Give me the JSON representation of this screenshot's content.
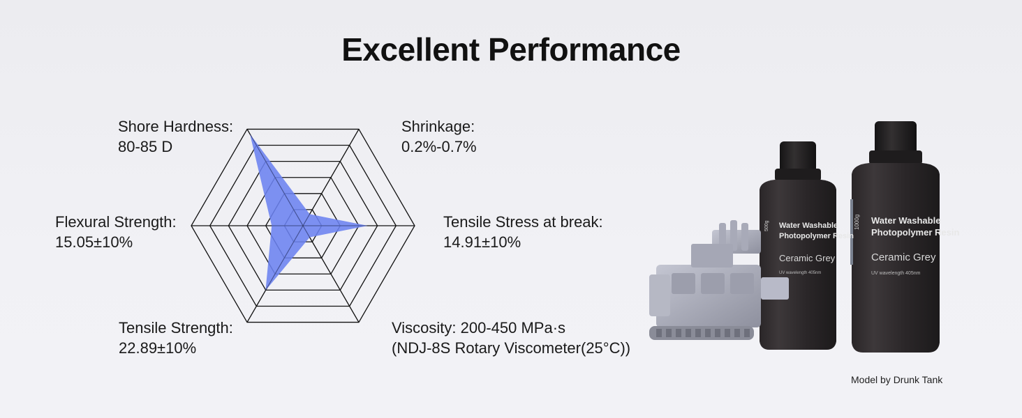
{
  "title": "Excellent Performance",
  "credit": "Model by Drunk Tank",
  "chart_data": {
    "type": "radar",
    "levels": 6,
    "fill_color": "#6b82f0",
    "axes": [
      {
        "label": "Shore Hardness:",
        "value_text": "80-85 D",
        "value": 0.95
      },
      {
        "label": "Shrinkage:",
        "value_text": "0.2%-0.7%",
        "value": 0.12
      },
      {
        "label": "Tensile Stress at break:",
        "value_text": "14.91±10%",
        "value": 0.58
      },
      {
        "label": "Viscosity: 200-450 MPa·s",
        "value_text": "(NDJ-8S Rotary Viscometer(25°C))",
        "value": 0.12
      },
      {
        "label": "Tensile Strength:",
        "value_text": "22.89±10%",
        "value": 0.67
      },
      {
        "label": "Flexural Strength:",
        "value_text": "15.05±10%",
        "value": 0.28
      }
    ]
  },
  "product": {
    "bottle_small": {
      "size": "500g",
      "line1": "Water Washable",
      "line2": "Photopolymer Resin",
      "color_name": "Ceramic Grey",
      "spec": "UV wavelength 405nm"
    },
    "bottle_large": {
      "size": "1000g",
      "line1": "Water Washable",
      "line2": "Photopolymer Resin",
      "color_name": "Ceramic Grey",
      "spec": "UV wavelength 405nm"
    }
  }
}
